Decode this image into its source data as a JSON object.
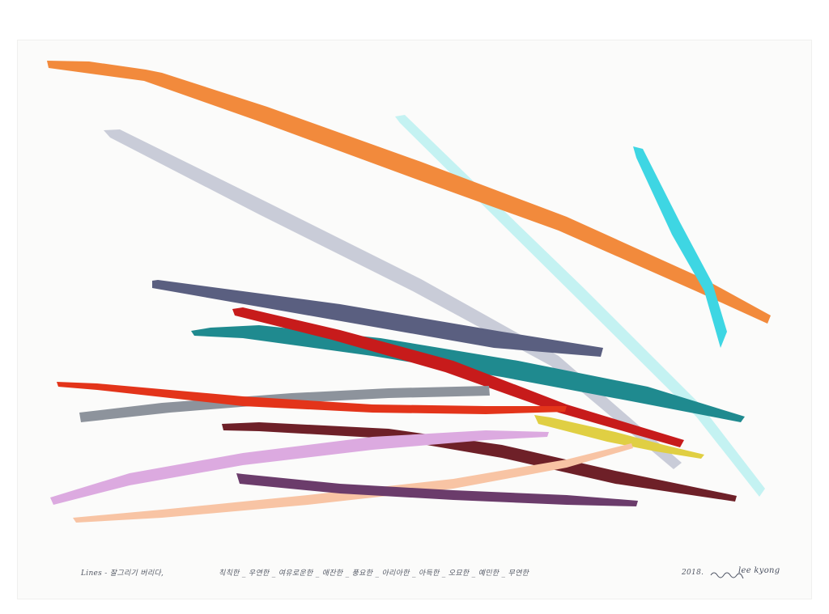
{
  "artwork": {
    "title": "Lines - 잘그리기 버리다,",
    "adjectives": "칙칙한 _ 우연한 _ 여유로운한 _ 애잔한 _ 풍요한 _ 아리아한 _ 아득한 _ 오묘한 _ 예민한 _ 무연한",
    "date": "2018.",
    "signature": "lee kyong",
    "signature_scribble": "signature-glyph",
    "colors": {
      "background": "#ffffff",
      "paper": "#fbfbfa",
      "orange": "#f28a3c",
      "lavender_gray": "#c9ccd8",
      "pale_cyan": "#c4f2f2",
      "cyan": "#3ed6e3",
      "slate_blue": "#5a5f80",
      "crimson": "#c71b1b",
      "teal": "#1f8a8f",
      "red": "#e3341a",
      "gray": "#8d939c",
      "maroon": "#6e2028",
      "yellow": "#e0cf43",
      "lilac": "#dcaae0",
      "peach": "#f8c4a4",
      "plum": "#6b3c6b"
    }
  }
}
